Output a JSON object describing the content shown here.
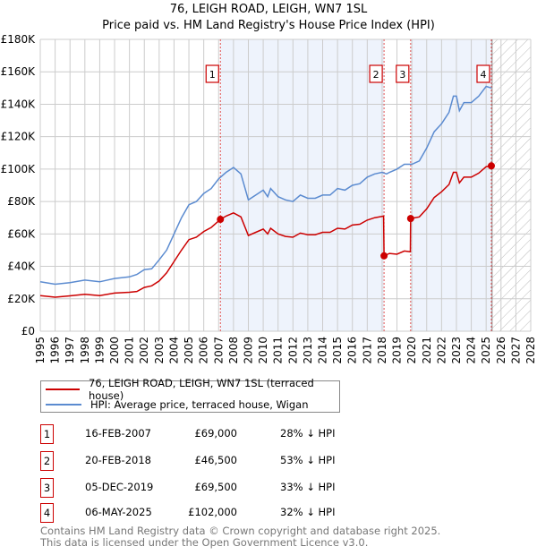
{
  "chart_data": {
    "type": "line",
    "title": "76, LEIGH ROAD, LEIGH, WN7 1SL",
    "subtitle": "Price paid vs. HM Land Registry's House Price Index (HPI)",
    "xlim": [
      1995,
      2028
    ],
    "ylim": [
      0,
      180000
    ],
    "x_ticks": [
      "1995",
      "1996",
      "1997",
      "1998",
      "1999",
      "2000",
      "2001",
      "2002",
      "2003",
      "2004",
      "2005",
      "2006",
      "2007",
      "2008",
      "2009",
      "2010",
      "2011",
      "2012",
      "2013",
      "2014",
      "2015",
      "2016",
      "2017",
      "2018",
      "2019",
      "2020",
      "2021",
      "2022",
      "2023",
      "2024",
      "2025",
      "2026",
      "2027",
      "2028"
    ],
    "y_ticks": [
      {
        "v": 0,
        "label": "£0"
      },
      {
        "v": 20000,
        "label": "£20K"
      },
      {
        "v": 40000,
        "label": "£40K"
      },
      {
        "v": 60000,
        "label": "£60K"
      },
      {
        "v": 80000,
        "label": "£80K"
      },
      {
        "v": 100000,
        "label": "£100K"
      },
      {
        "v": 120000,
        "label": "£120K"
      },
      {
        "v": 140000,
        "label": "£140K"
      },
      {
        "v": 160000,
        "label": "£160K"
      },
      {
        "v": 180000,
        "label": "£180K"
      }
    ],
    "grid": true,
    "shaded_periods": [
      [
        2007.12,
        2018.13
      ],
      [
        2019.92,
        2025.35
      ]
    ],
    "forecast_hatch_from": 2025.4,
    "colors": {
      "property": "#cc0000",
      "hpi": "#5b8bd0",
      "shade": "#eef3fc"
    },
    "series": [
      {
        "name": "76, LEIGH ROAD, LEIGH, WN7 1SL (terraced house)",
        "color": "#cc0000",
        "x": [
          1995,
          1996,
          1997,
          1998,
          1999,
          2000,
          2001,
          2001.5,
          2002,
          2002.5,
          2003,
          2003.5,
          2004,
          2004.5,
          2005,
          2005.5,
          2006,
          2006.5,
          2007,
          2007.12,
          2007.5,
          2008,
          2008.5,
          2009,
          2009.5,
          2010,
          2010.3,
          2010.5,
          2011,
          2011.5,
          2012,
          2012.5,
          2013,
          2013.5,
          2014,
          2014.5,
          2015,
          2015.5,
          2016,
          2016.5,
          2017,
          2017.5,
          2018.1,
          2018.13,
          2018.5,
          2019,
          2019.5,
          2019.9,
          2019.92,
          2020.5,
          2021,
          2021.5,
          2022,
          2022.5,
          2022.8,
          2023,
          2023.2,
          2023.5,
          2024,
          2024.5,
          2025,
          2025.35
        ],
        "y": [
          22000,
          21000,
          21800,
          22800,
          22000,
          23500,
          24000,
          24500,
          27000,
          28000,
          31000,
          36000,
          43000,
          50000,
          56500,
          58000,
          61500,
          64000,
          68000,
          69000,
          71000,
          73000,
          70500,
          59000,
          61000,
          63000,
          60000,
          63500,
          60000,
          58500,
          58000,
          60500,
          59500,
          59500,
          61000,
          61000,
          63500,
          63000,
          65500,
          66000,
          68500,
          70000,
          71000,
          46500,
          48000,
          47500,
          49500,
          49000,
          69500,
          70500,
          75500,
          82500,
          86000,
          90500,
          98000,
          98000,
          91500,
          95000,
          95000,
          97500,
          101500,
          102000
        ]
      },
      {
        "name": "HPI: Average price, terraced house, Wigan",
        "color": "#5b8bd0",
        "x": [
          1995,
          1996,
          1997,
          1998,
          1999,
          2000,
          2001,
          2001.5,
          2002,
          2002.5,
          2003,
          2003.5,
          2004,
          2004.5,
          2005,
          2005.5,
          2006,
          2006.5,
          2007,
          2007.5,
          2008,
          2008.5,
          2009,
          2009.5,
          2010,
          2010.3,
          2010.5,
          2011,
          2011.5,
          2012,
          2012.5,
          2013,
          2013.5,
          2014,
          2014.5,
          2015,
          2015.5,
          2016,
          2016.5,
          2017,
          2017.5,
          2018,
          2018.3,
          2018.5,
          2019,
          2019.5,
          2020,
          2020.5,
          2021,
          2021.5,
          2022,
          2022.5,
          2022.8,
          2023,
          2023.2,
          2023.5,
          2024,
          2024.5,
          2025,
          2025.35
        ],
        "y": [
          30500,
          29000,
          30000,
          31500,
          30500,
          32500,
          33500,
          35000,
          38000,
          38500,
          44000,
          50000,
          60000,
          70000,
          78000,
          80000,
          85000,
          88000,
          94000,
          98000,
          101000,
          97000,
          81000,
          84000,
          87000,
          83000,
          88000,
          83000,
          81000,
          80000,
          84000,
          82000,
          82000,
          84000,
          84000,
          88000,
          87000,
          90000,
          91000,
          95000,
          97000,
          98000,
          97000,
          98000,
          100000,
          103000,
          103000,
          105000,
          113000,
          123000,
          128000,
          135000,
          145000,
          145000,
          136000,
          141000,
          141000,
          145000,
          151000,
          150000
        ]
      }
    ],
    "sales": [
      {
        "id": "1",
        "x": 2007.12,
        "y": 69000
      },
      {
        "id": "2",
        "x": 2018.13,
        "y": 46500
      },
      {
        "id": "3",
        "x": 2019.92,
        "y": 69500
      },
      {
        "id": "4",
        "x": 2025.35,
        "y": 102000
      }
    ]
  },
  "legend": {
    "property": "76, LEIGH ROAD, LEIGH, WN7 1SL (terraced house)",
    "hpi": "HPI: Average price, terraced house, Wigan"
  },
  "transactions": [
    {
      "num": "1",
      "date": "16-FEB-2007",
      "price": "£69,000",
      "hpi": "28% ↓ HPI"
    },
    {
      "num": "2",
      "date": "20-FEB-2018",
      "price": "£46,500",
      "hpi": "53% ↓ HPI"
    },
    {
      "num": "3",
      "date": "05-DEC-2019",
      "price": "£69,500",
      "hpi": "33% ↓ HPI"
    },
    {
      "num": "4",
      "date": "06-MAY-2025",
      "price": "£102,000",
      "hpi": "32% ↓ HPI"
    }
  ],
  "footer": {
    "line1": "Contains HM Land Registry data © Crown copyright and database right 2025.",
    "line2": "This data is licensed under the Open Government Licence v3.0."
  }
}
